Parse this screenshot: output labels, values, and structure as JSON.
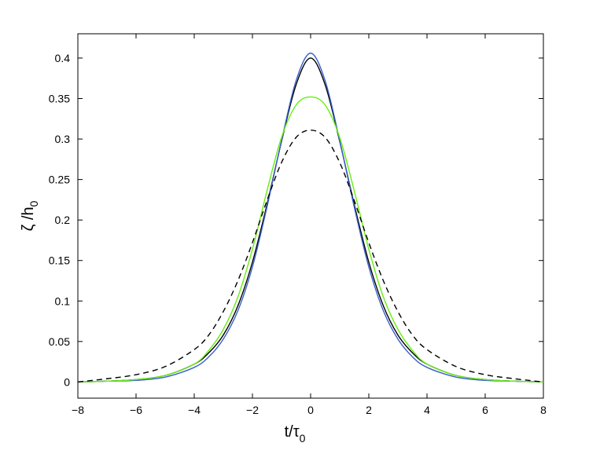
{
  "chart_data": {
    "type": "line",
    "title": "",
    "xlabel": {
      "main": "t/τ",
      "sub": "0"
    },
    "ylabel": {
      "main": "ζ /h",
      "sub": "0"
    },
    "xlim": [
      -8,
      8
    ],
    "ylim": [
      -0.02,
      0.43
    ],
    "xticks": [
      -8,
      -6,
      -4,
      -2,
      0,
      2,
      4,
      6,
      8
    ],
    "xtick_labels": [
      "−8",
      "−6",
      "−4",
      "−2",
      "0",
      "2",
      "4",
      "6",
      "8"
    ],
    "yticks": [
      0,
      0.05,
      0.1,
      0.15,
      0.2,
      0.25,
      0.3,
      0.35,
      0.4
    ],
    "ytick_labels": [
      "0",
      "0.05",
      "0.1",
      "0.15",
      "0.2",
      "0.25",
      "0.3",
      "0.35",
      "0.4"
    ],
    "grid": false,
    "x": [
      -8,
      -7,
      -6,
      -5,
      -4,
      -3.5,
      -3,
      -2.5,
      -2,
      -1.5,
      -1,
      -0.5,
      0,
      0.5,
      1,
      1.5,
      2,
      2.5,
      3,
      3.5,
      4,
      5,
      6,
      7,
      8
    ],
    "series": [
      {
        "color": "#000000",
        "dash": "solid",
        "values": [
          0.0,
          0.001,
          0.003,
          0.008,
          0.022,
          0.036,
          0.058,
          0.094,
          0.148,
          0.219,
          0.297,
          0.367,
          0.4,
          0.367,
          0.297,
          0.219,
          0.148,
          0.094,
          0.058,
          0.036,
          0.022,
          0.008,
          0.003,
          0.001,
          0.0
        ]
      },
      {
        "color": "#3a5fcd",
        "dash": "solid",
        "values": [
          0.0,
          0.001,
          0.002,
          0.006,
          0.018,
          0.031,
          0.053,
          0.088,
          0.142,
          0.216,
          0.298,
          0.372,
          0.406,
          0.372,
          0.298,
          0.216,
          0.142,
          0.088,
          0.053,
          0.031,
          0.018,
          0.006,
          0.002,
          0.001,
          0.0
        ]
      },
      {
        "color": "#66ee11",
        "dash": "solid",
        "values": [
          0.0,
          0.001,
          0.003,
          0.008,
          0.022,
          0.039,
          0.065,
          0.105,
          0.164,
          0.236,
          0.302,
          0.342,
          0.352,
          0.342,
          0.302,
          0.236,
          0.164,
          0.105,
          0.065,
          0.039,
          0.022,
          0.008,
          0.003,
          0.001,
          0.0
        ]
      },
      {
        "color": "#000000",
        "dash": "dashed",
        "values": [
          0.0,
          0.004,
          0.009,
          0.019,
          0.04,
          0.058,
          0.087,
          0.125,
          0.172,
          0.224,
          0.271,
          0.302,
          0.311,
          0.302,
          0.271,
          0.224,
          0.172,
          0.125,
          0.087,
          0.058,
          0.04,
          0.019,
          0.009,
          0.004,
          0.0
        ]
      }
    ]
  }
}
